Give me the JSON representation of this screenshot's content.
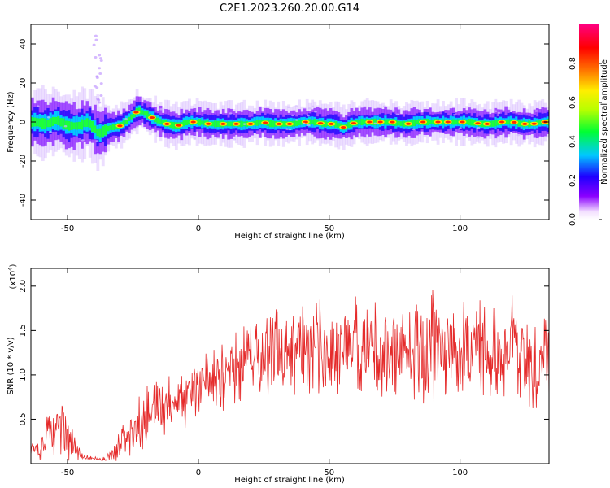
{
  "title": "C2E1.2023.260.20.00.G14",
  "chart_data": [
    {
      "type": "heatmap",
      "xlabel": "Height of straight line (km)",
      "ylabel": "Frequency (Hz)",
      "xlim": [
        -64,
        134
      ],
      "ylim": [
        -50,
        50
      ],
      "xticks": [
        -50,
        0,
        50,
        100
      ],
      "yticks": [
        -40,
        -20,
        0,
        20,
        40
      ],
      "ridge": {
        "x": [
          -62,
          -58,
          -54,
          -50,
          -46,
          -42,
          -38,
          -34,
          -30,
          -26,
          -23,
          -20,
          -16,
          -12,
          -8,
          -4,
          0,
          4,
          8,
          12,
          16,
          20,
          24,
          28,
          32,
          36,
          40,
          44,
          48,
          52,
          54,
          56,
          58,
          62,
          66,
          70,
          74,
          78,
          80,
          84,
          88,
          92,
          96,
          100,
          104,
          108,
          112,
          116,
          120,
          124,
          128,
          132,
          134
        ],
        "freq": [
          0,
          -1,
          1,
          -2,
          -2,
          0,
          -6,
          -3,
          -2,
          2,
          6,
          4,
          1,
          -1,
          -2,
          0,
          0,
          -1,
          -1,
          -1,
          -1,
          -1,
          0,
          -1,
          -1,
          -1,
          0,
          0,
          -1,
          -1,
          -2,
          -3,
          -1,
          0,
          0,
          0,
          0,
          -1,
          -1,
          0,
          0,
          0,
          0,
          0,
          0,
          -1,
          -1,
          0,
          0,
          -1,
          -1,
          0,
          0
        ]
      },
      "colorbar": {
        "label": "Normalized spectral amplitude",
        "range": [
          0,
          1
        ],
        "ticks": [
          "0.0",
          "0.2",
          "0.4",
          "0.6",
          "0.8"
        ]
      }
    },
    {
      "type": "line",
      "xlabel": "Height of straight line (km)",
      "ylabel": "SNR (10 * v/v)",
      "scale_label": "(x10",
      "scale_exp": "4",
      "scale_close": ")",
      "xlim": [
        -64,
        134
      ],
      "ylim": [
        0,
        2.2
      ],
      "xticks": [
        -50,
        0,
        50,
        100
      ],
      "yticks": [
        "0.5",
        "1.0",
        "1.5",
        "2.0"
      ],
      "series": [
        {
          "color": "#e52b2b",
          "x": [
            -64,
            -60,
            -56,
            -53,
            -51,
            -48,
            -45,
            -42,
            -38,
            -35,
            -32,
            -30,
            -28,
            -25,
            -22,
            -19,
            -16,
            -12,
            -8,
            -4,
            0,
            4,
            8,
            12,
            16,
            20,
            24,
            28,
            32,
            36,
            40,
            44,
            48,
            52,
            56,
            60,
            64,
            68,
            72,
            76,
            80,
            84,
            88,
            90,
            92,
            96,
            100,
            104,
            108,
            112,
            116,
            120,
            124,
            128,
            131,
            134
          ],
          "mean": [
            0.15,
            0.2,
            0.35,
            0.45,
            0.35,
            0.2,
            0.1,
            0.06,
            0.05,
            0.05,
            0.15,
            0.2,
            0.3,
            0.35,
            0.45,
            0.55,
            0.6,
            0.65,
            0.7,
            0.75,
            0.85,
            0.9,
            0.95,
            1.05,
            1.1,
            1.15,
            1.2,
            1.25,
            1.25,
            1.3,
            1.3,
            1.35,
            1.3,
            1.3,
            1.3,
            1.35,
            1.25,
            1.3,
            1.3,
            1.35,
            1.2,
            1.3,
            1.3,
            1.4,
            1.3,
            1.25,
            1.3,
            1.25,
            1.3,
            1.2,
            1.25,
            1.3,
            1.2,
            1.15,
            1.2,
            1.2
          ],
          "amp": [
            0.12,
            0.18,
            0.3,
            0.45,
            0.35,
            0.2,
            0.05,
            0.03,
            0.02,
            0.03,
            0.12,
            0.18,
            0.25,
            0.3,
            0.35,
            0.35,
            0.35,
            0.35,
            0.35,
            0.35,
            0.35,
            0.38,
            0.4,
            0.42,
            0.45,
            0.45,
            0.5,
            0.5,
            0.52,
            0.52,
            0.55,
            0.55,
            0.55,
            0.55,
            0.55,
            0.6,
            0.55,
            0.6,
            0.6,
            0.6,
            0.55,
            0.6,
            0.65,
            0.8,
            0.6,
            0.55,
            0.6,
            0.55,
            0.55,
            0.55,
            0.55,
            0.6,
            0.55,
            0.55,
            0.55,
            0.55
          ]
        }
      ]
    }
  ]
}
